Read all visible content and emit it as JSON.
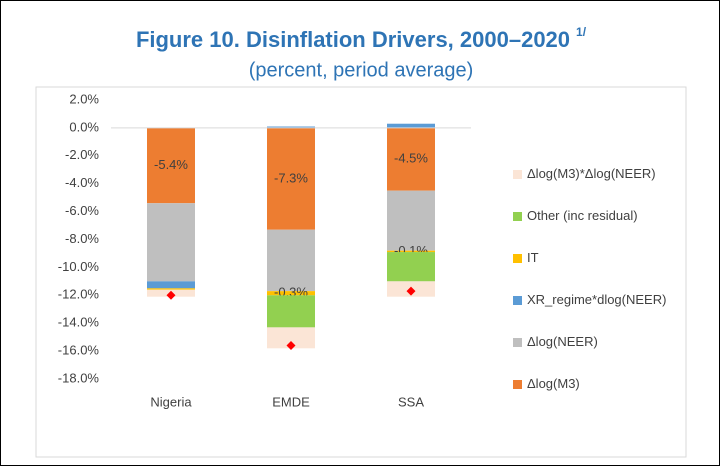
{
  "chart_data": {
    "type": "stacked_bar",
    "title": "Figure 10. Disinflation Drivers, 2000–2020",
    "title_note": "1/",
    "subtitle": "(percent, period average)",
    "categories": [
      "Nigeria",
      "EMDE",
      "SSA"
    ],
    "ylim": [
      -18,
      2
    ],
    "yticks": [
      {
        "value": 2,
        "label": "2.0%"
      },
      {
        "value": 0,
        "label": "0.0%"
      },
      {
        "value": -2,
        "label": "-2.0%"
      },
      {
        "value": -4,
        "label": "-4.0%"
      },
      {
        "value": -6,
        "label": "-6.0%"
      },
      {
        "value": -8,
        "label": "-8.0%"
      },
      {
        "value": -10,
        "label": "-10.0%"
      },
      {
        "value": -12,
        "label": "-12.0%"
      },
      {
        "value": -14,
        "label": "-14.0%"
      },
      {
        "value": -16,
        "label": "-16.0%"
      },
      {
        "value": -18,
        "label": "-18.0%"
      }
    ],
    "grid": false,
    "series": [
      {
        "name": "Δlog(M3)",
        "color": "#ed7d31",
        "values": [
          -5.4,
          -7.3,
          -4.5
        ],
        "value_labels": [
          "-5.4%",
          "-7.3%",
          "-4.5%"
        ]
      },
      {
        "name": "Δlog(NEER)",
        "color": "#bfbfbf",
        "values": [
          -5.6,
          -4.4,
          -4.3
        ]
      },
      {
        "name": "XR_regime*dlog(NEER)",
        "color": "#5b9bd5",
        "values": [
          -0.5,
          0.1,
          0.3
        ]
      },
      {
        "name": "IT",
        "color": "#ffc000",
        "values": [
          -0.1,
          -0.3,
          -0.1
        ],
        "value_labels": [
          null,
          "-0.3%",
          "-0.1%"
        ]
      },
      {
        "name": "Other (inc residual)",
        "color": "#92d050",
        "values": [
          0,
          -2.3,
          -2.1
        ]
      },
      {
        "name": "Δlog(M3)*Δlog(NEER)",
        "color": "#fbe5d6",
        "values": [
          -0.5,
          -1.5,
          -1.1
        ]
      }
    ],
    "markers": {
      "color": "#ff0000",
      "values": [
        -12.0,
        -15.6,
        -11.7
      ]
    }
  }
}
